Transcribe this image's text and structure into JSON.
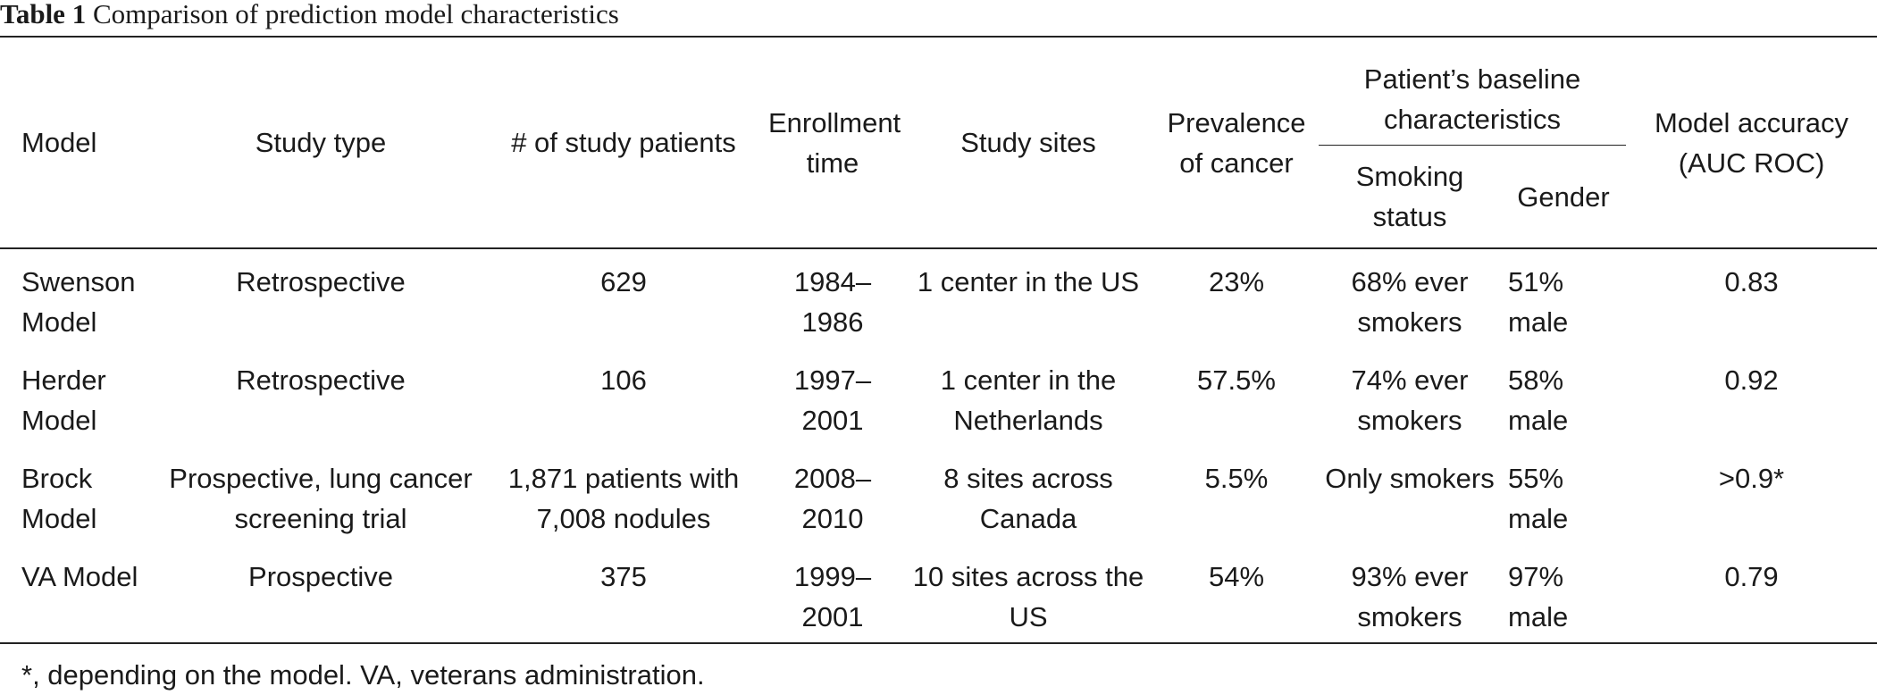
{
  "caption": {
    "label": "Table 1",
    "title": "Comparison of prediction model characteristics"
  },
  "headers": {
    "model": "Model",
    "study_type": "Study type",
    "patients": "# of study patients",
    "enrollment": "Enrollment time",
    "sites": "Study sites",
    "prevalence": "Prevalence of cancer",
    "baseline_group": "Patient’s baseline characteristics",
    "smoking": "Smoking status",
    "gender": "Gender",
    "accuracy": "Model accuracy (AUC ROC)"
  },
  "rows": [
    {
      "model": "Swenson Model",
      "study_type": "Retrospective",
      "patients": "629",
      "enrollment": "1984–1986",
      "sites": "1 center in the US",
      "prevalence": "23%",
      "smoking": "68% ever smokers",
      "gender": "51% male",
      "accuracy": "0.83"
    },
    {
      "model": "Herder Model",
      "study_type": "Retrospective",
      "patients": "106",
      "enrollment": "1997–2001",
      "sites": "1 center in the Netherlands",
      "prevalence": "57.5%",
      "smoking": "74% ever smokers",
      "gender": "58% male",
      "accuracy": "0.92"
    },
    {
      "model": "Brock Model",
      "study_type": "Prospective, lung cancer screening trial",
      "patients": "1,871 patients with 7,008 nodules",
      "enrollment": "2008–2010",
      "sites": "8 sites across Canada",
      "prevalence": "5.5%",
      "smoking": "Only smokers",
      "gender": "55% male",
      "accuracy": ">0.9*"
    },
    {
      "model": "VA Model",
      "study_type": "Prospective",
      "patients": "375",
      "enrollment": "1999–2001",
      "sites": "10 sites across the US",
      "prevalence": "54%",
      "smoking": "93% ever smokers",
      "gender": "97% male",
      "accuracy": "0.79"
    }
  ],
  "footnote": "*, depending on the model. VA, veterans administration."
}
